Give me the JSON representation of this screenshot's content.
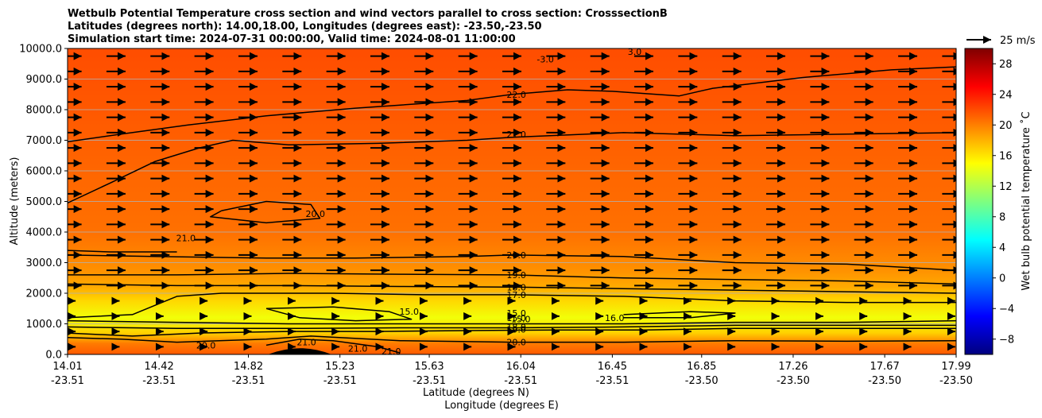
{
  "chart_data": {
    "type": "contour",
    "title_lines": [
      "Wetbulb Potential Temperature cross section and wind vectors parallel to cross section: CrosssectionB",
      "Latitudes (degrees north): 14.00,18.00, Longitudes (degrees east): -23.50,-23.50",
      "Simulation start time: 2024-07-31 00:00:00, Valid time: 2024-08-01 11:00:00"
    ],
    "xlabel_lines": [
      "Latitude (degrees N)",
      "Longitude (degrees E)"
    ],
    "ylabel": "Altitude (meters)",
    "y_range": [
      0,
      10000
    ],
    "y_ticks": [
      "0.0",
      "1000.0",
      "2000.0",
      "3000.0",
      "4000.0",
      "5000.0",
      "6000.0",
      "7000.0",
      "8000.0",
      "9000.0",
      "10000.0"
    ],
    "x_ticks": [
      {
        "lat": "14.01",
        "lon": "-23.51"
      },
      {
        "lat": "14.42",
        "lon": "-23.51"
      },
      {
        "lat": "14.82",
        "lon": "-23.51"
      },
      {
        "lat": "15.23",
        "lon": "-23.51"
      },
      {
        "lat": "15.63",
        "lon": "-23.51"
      },
      {
        "lat": "16.04",
        "lon": "-23.51"
      },
      {
        "lat": "16.45",
        "lon": "-23.51"
      },
      {
        "lat": "16.85",
        "lon": "-23.50"
      },
      {
        "lat": "17.26",
        "lon": "-23.50"
      },
      {
        "lat": "17.67",
        "lon": "-23.50"
      },
      {
        "lat": "17.99",
        "lon": "-23.50"
      }
    ],
    "colorbar": {
      "label": "Wet bulb potential temperature $^\\circ$C",
      "label_display": "Wet bulb potential temperature ˚C",
      "range": [
        -10,
        30
      ],
      "ticks": [
        "−8",
        "−4",
        "0",
        "4",
        "8",
        "12",
        "16",
        "20",
        "24",
        "28"
      ],
      "colors": [
        "#00007f",
        "#0000ff",
        "#007fff",
        "#00ffff",
        "#7fff7f",
        "#ffff00",
        "#ff7f00",
        "#ff0000",
        "#7f0000"
      ]
    },
    "quiver_key": {
      "label": "25 m/s"
    },
    "contour_labels": [
      {
        "text": "-3.0",
        "lat": 16.15,
        "alt": 9650
      },
      {
        "text": "3.0",
        "lat": 16.55,
        "alt": 9900
      },
      {
        "text": "22.0",
        "lat": 16.02,
        "alt": 8500
      },
      {
        "text": "21.0",
        "lat": 16.02,
        "alt": 7200
      },
      {
        "text": "20.0",
        "lat": 15.12,
        "alt": 4600
      },
      {
        "text": "21.0",
        "lat": 14.54,
        "alt": 3800
      },
      {
        "text": "20.0",
        "lat": 16.02,
        "alt": 3250
      },
      {
        "text": "19.0",
        "lat": 16.02,
        "alt": 2600
      },
      {
        "text": "18.0",
        "lat": 16.02,
        "alt": 2200
      },
      {
        "text": "17.0",
        "lat": 16.02,
        "alt": 1950
      },
      {
        "text": "15.0",
        "lat": 15.54,
        "alt": 1400
      },
      {
        "text": "15.0",
        "lat": 16.02,
        "alt": 1350
      },
      {
        "text": "15.0",
        "lat": 16.02,
        "alt": 1200
      },
      {
        "text": "15.0",
        "lat": 16.04,
        "alt": 1150
      },
      {
        "text": "16.0",
        "lat": 16.46,
        "alt": 1200
      },
      {
        "text": "18.0",
        "lat": 16.02,
        "alt": 900
      },
      {
        "text": "19.0",
        "lat": 16.02,
        "alt": 820
      },
      {
        "text": "20.0",
        "lat": 16.02,
        "alt": 400
      },
      {
        "text": "20.0",
        "lat": 14.63,
        "alt": 300
      },
      {
        "text": "21.0",
        "lat": 15.08,
        "alt": 400
      },
      {
        "text": "21.0",
        "lat": 15.31,
        "alt": 200
      },
      {
        "text": "21.0",
        "lat": 15.46,
        "alt": 100
      }
    ],
    "contour_lines": [
      {
        "level": 22,
        "pts": [
          [
            14.01,
            6950
          ],
          [
            14.25,
            7200
          ],
          [
            14.55,
            7500
          ],
          [
            14.9,
            7800
          ],
          [
            15.3,
            8050
          ],
          [
            15.8,
            8300
          ],
          [
            16.0,
            8500
          ],
          [
            16.25,
            8650
          ],
          [
            16.45,
            8600
          ],
          [
            16.75,
            8450
          ],
          [
            16.9,
            8700
          ],
          [
            17.3,
            9050
          ],
          [
            17.7,
            9300
          ],
          [
            17.99,
            9400
          ]
        ]
      },
      {
        "level": 21,
        "pts": [
          [
            14.01,
            4950
          ],
          [
            14.2,
            5600
          ],
          [
            14.4,
            6300
          ],
          [
            14.6,
            6750
          ],
          [
            14.75,
            7000
          ],
          [
            15.0,
            6850
          ],
          [
            15.4,
            6900
          ],
          [
            15.8,
            7000
          ],
          [
            16.0,
            7100
          ],
          [
            16.5,
            7250
          ],
          [
            17.0,
            7150
          ],
          [
            17.5,
            7200
          ],
          [
            17.99,
            7250
          ]
        ]
      },
      {
        "level": 21,
        "pts": [
          [
            14.01,
            3400
          ],
          [
            14.2,
            3350
          ],
          [
            14.5,
            3350
          ]
        ]
      },
      {
        "level": 20,
        "pts": [
          [
            14.7,
            4700
          ],
          [
            14.9,
            5000
          ],
          [
            15.1,
            4900
          ],
          [
            15.14,
            4450
          ],
          [
            14.9,
            4300
          ],
          [
            14.65,
            4500
          ],
          [
            14.7,
            4700
          ]
        ]
      },
      {
        "level": 20,
        "pts": [
          [
            14.01,
            3250
          ],
          [
            14.4,
            3200
          ],
          [
            14.9,
            3150
          ],
          [
            15.3,
            3150
          ],
          [
            15.8,
            3200
          ],
          [
            16.0,
            3250
          ],
          [
            16.5,
            3200
          ],
          [
            17.0,
            3000
          ],
          [
            17.5,
            2950
          ],
          [
            17.99,
            2750
          ]
        ]
      },
      {
        "level": 19,
        "pts": [
          [
            14.01,
            2600
          ],
          [
            14.5,
            2600
          ],
          [
            15.0,
            2650
          ],
          [
            15.5,
            2620
          ],
          [
            16.0,
            2600
          ],
          [
            16.5,
            2500
          ],
          [
            17.0,
            2450
          ],
          [
            17.5,
            2400
          ],
          [
            17.99,
            2300
          ]
        ]
      },
      {
        "level": 18,
        "pts": [
          [
            14.01,
            2300
          ],
          [
            14.5,
            2250
          ],
          [
            15.0,
            2250
          ],
          [
            15.5,
            2220
          ],
          [
            16.0,
            2200
          ],
          [
            16.5,
            2150
          ],
          [
            17.0,
            2100
          ],
          [
            17.5,
            2050
          ],
          [
            17.99,
            2000
          ]
        ]
      },
      {
        "level": 17,
        "pts": [
          [
            14.01,
            1200
          ],
          [
            14.3,
            1300
          ],
          [
            14.5,
            1900
          ],
          [
            14.7,
            2000
          ],
          [
            15.2,
            2000
          ],
          [
            15.6,
            1950
          ],
          [
            16.0,
            1950
          ],
          [
            16.5,
            1900
          ],
          [
            17.0,
            1750
          ],
          [
            17.5,
            1700
          ],
          [
            17.99,
            1700
          ]
        ]
      },
      {
        "level": 15,
        "pts": [
          [
            14.9,
            1500
          ],
          [
            15.2,
            1550
          ],
          [
            15.45,
            1400
          ],
          [
            15.55,
            1150
          ],
          [
            15.3,
            1100
          ],
          [
            15.05,
            1200
          ],
          [
            14.9,
            1500
          ]
        ]
      },
      {
        "level": 15,
        "pts": [
          [
            16.5,
            1300
          ],
          [
            16.8,
            1400
          ],
          [
            17.0,
            1350
          ],
          [
            16.8,
            1200
          ],
          [
            16.5,
            1200
          ]
        ]
      },
      {
        "level": 16,
        "pts": [
          [
            14.01,
            1100
          ],
          [
            14.5,
            1050
          ],
          [
            15.0,
            1000
          ],
          [
            15.5,
            1000
          ],
          [
            16.0,
            1000
          ],
          [
            16.5,
            1000
          ],
          [
            17.0,
            1050
          ],
          [
            17.5,
            1050
          ],
          [
            17.99,
            1100
          ]
        ]
      },
      {
        "level": 18,
        "pts": [
          [
            14.01,
            900
          ],
          [
            14.5,
            850
          ],
          [
            15.0,
            850
          ],
          [
            15.5,
            870
          ],
          [
            16.0,
            870
          ],
          [
            16.5,
            900
          ],
          [
            17.0,
            950
          ],
          [
            17.5,
            950
          ],
          [
            17.99,
            950
          ]
        ]
      },
      {
        "level": 19,
        "pts": [
          [
            14.01,
            700
          ],
          [
            14.3,
            600
          ],
          [
            14.6,
            700
          ],
          [
            15.0,
            750
          ],
          [
            15.4,
            750
          ],
          [
            15.8,
            780
          ],
          [
            16.2,
            800
          ],
          [
            16.6,
            800
          ],
          [
            17.0,
            850
          ],
          [
            17.5,
            850
          ],
          [
            17.99,
            850
          ]
        ]
      },
      {
        "level": 20,
        "pts": [
          [
            14.01,
            550
          ],
          [
            14.25,
            500
          ],
          [
            14.5,
            400
          ],
          [
            14.9,
            500
          ],
          [
            15.1,
            600
          ],
          [
            15.5,
            450
          ],
          [
            16.0,
            400
          ],
          [
            16.5,
            400
          ],
          [
            17.0,
            450
          ],
          [
            17.5,
            430
          ],
          [
            17.99,
            450
          ]
        ]
      },
      {
        "level": 21,
        "pts": [
          [
            14.9,
            300
          ],
          [
            15.05,
            500
          ],
          [
            15.2,
            450
          ],
          [
            15.4,
            250
          ],
          [
            15.5,
            50
          ]
        ]
      }
    ],
    "terrain": {
      "lat_center": 15.05,
      "peak_alt": 250
    }
  }
}
